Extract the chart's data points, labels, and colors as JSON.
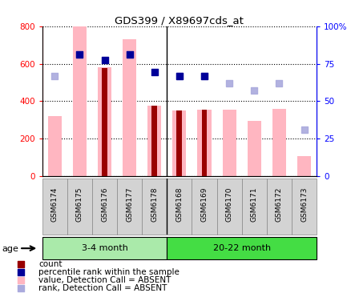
{
  "title": "GDS399 / X89697cds_at",
  "samples": [
    "GSM6174",
    "GSM6175",
    "GSM6176",
    "GSM6177",
    "GSM6178",
    "GSM6168",
    "GSM6169",
    "GSM6170",
    "GSM6171",
    "GSM6172",
    "GSM6173"
  ],
  "group1_label": "3-4 month",
  "group2_label": "20-22 month",
  "group1_count": 5,
  "group2_count": 6,
  "value_bars": [
    320,
    800,
    580,
    730,
    375,
    350,
    355,
    355,
    295,
    360,
    105
  ],
  "count_bars": [
    0,
    0,
    575,
    0,
    375,
    348,
    352,
    0,
    0,
    0,
    0
  ],
  "percentile_rank_vals": [
    null,
    650,
    620,
    650,
    555,
    535,
    535,
    null,
    null,
    null,
    null
  ],
  "rank_scatter_vals": [
    535,
    650,
    null,
    650,
    null,
    535,
    535,
    495,
    455,
    495,
    245
  ],
  "ylim_left": [
    0,
    800
  ],
  "ylim_right": [
    0,
    100
  ],
  "yticks_left": [
    0,
    200,
    400,
    600,
    800
  ],
  "yticks_right": [
    0,
    25,
    50,
    75,
    100
  ],
  "ytick_labels_right": [
    "0",
    "25",
    "50",
    "75",
    "100%"
  ],
  "bar_color_count": "#990000",
  "bar_color_value": "#FFB6C1",
  "scatter_color_pct": "#000099",
  "scatter_color_rank": "#AAAADD",
  "group1_color": "#AAEAAA",
  "group2_color": "#44DD44",
  "age_label": "age",
  "legend_items": [
    {
      "label": "count",
      "color": "#990000"
    },
    {
      "label": "percentile rank within the sample",
      "color": "#000099"
    },
    {
      "label": "value, Detection Call = ABSENT",
      "color": "#FFB6C1"
    },
    {
      "label": "rank, Detection Call = ABSENT",
      "color": "#AAAADD"
    }
  ]
}
